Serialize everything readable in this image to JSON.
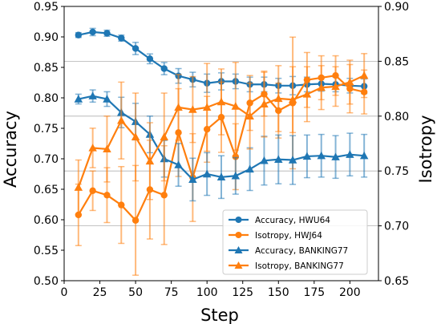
{
  "chart_data": {
    "type": "line",
    "xlabel": "Step",
    "ylabel_left": "Accuracy",
    "ylabel_right": "Isotropy",
    "xlim": [
      0,
      220
    ],
    "ylim_left": [
      0.5,
      0.95
    ],
    "ylim_right": [
      0.65,
      0.9
    ],
    "xticks": [
      "0",
      "25",
      "50",
      "75",
      "100",
      "125",
      "150",
      "175",
      "200"
    ],
    "yticks_left": [
      "0.50",
      "0.55",
      "0.60",
      "0.65",
      "0.70",
      "0.75",
      "0.80",
      "0.85",
      "0.90",
      "0.95"
    ],
    "yticks_right": [
      "0.65",
      "0.70",
      "0.75",
      "0.80",
      "0.85",
      "0.90"
    ],
    "grid": "horizontal-right-axis",
    "legend_position": "lower-right",
    "x": [
      10,
      20,
      30,
      40,
      50,
      60,
      70,
      80,
      90,
      100,
      110,
      120,
      130,
      140,
      150,
      160,
      170,
      180,
      190,
      200,
      210
    ],
    "series": [
      {
        "name": "Accuracy, HWU64",
        "axis": "left",
        "marker": "circle",
        "color": "#1f77b4",
        "values": [
          0.903,
          0.908,
          0.906,
          0.898,
          0.881,
          0.864,
          0.848,
          0.836,
          0.83,
          0.824,
          0.827,
          0.827,
          0.822,
          0.822,
          0.82,
          0.82,
          0.822,
          0.823,
          0.822,
          0.82,
          0.819
        ],
        "err": [
          0.004,
          0.006,
          0.005,
          0.005,
          0.01,
          0.008,
          0.01,
          0.012,
          0.012,
          0.015,
          0.014,
          0.012,
          0.012,
          0.012,
          0.012,
          0.015,
          0.012,
          0.012,
          0.012,
          0.012,
          0.012
        ]
      },
      {
        "name": "Isotropy,  HWJ64",
        "axis": "right",
        "marker": "circle",
        "color": "#ff7f0e",
        "values": [
          0.71,
          0.732,
          0.728,
          0.719,
          0.705,
          0.733,
          0.728,
          0.785,
          0.744,
          0.788,
          0.799,
          0.763,
          0.812,
          0.82,
          0.805,
          0.812,
          0.833,
          0.835,
          0.837,
          0.825,
          0.822
        ],
        "err": [
          0.028,
          0.018,
          0.025,
          0.035,
          0.05,
          0.045,
          0.045,
          0.04,
          0.04,
          0.03,
          0.032,
          0.03,
          0.025,
          0.02,
          0.025,
          0.06,
          0.025,
          0.02,
          0.018,
          0.022,
          0.02
        ]
      },
      {
        "name": "Accuracy, BANKING77",
        "axis": "left",
        "marker": "triangle",
        "color": "#1f77b4",
        "values": [
          0.798,
          0.803,
          0.798,
          0.776,
          0.761,
          0.74,
          0.7,
          0.69,
          0.666,
          0.675,
          0.67,
          0.672,
          0.683,
          0.697,
          0.699,
          0.698,
          0.704,
          0.705,
          0.703,
          0.707,
          0.705
        ],
        "err": [
          0.008,
          0.01,
          0.012,
          0.025,
          0.03,
          0.03,
          0.03,
          0.035,
          0.035,
          0.035,
          0.035,
          0.03,
          0.035,
          0.04,
          0.04,
          0.04,
          0.035,
          0.035,
          0.035,
          0.035,
          0.035
        ]
      },
      {
        "name": "Isotropy,  BANKING77",
        "axis": "right",
        "marker": "triangle",
        "color": "#ff7f0e",
        "values": [
          0.735,
          0.771,
          0.77,
          0.796,
          0.781,
          0.759,
          0.781,
          0.808,
          0.806,
          0.808,
          0.813,
          0.809,
          0.8,
          0.811,
          0.816,
          0.815,
          0.82,
          0.826,
          0.827,
          0.831,
          0.837
        ],
        "err": [
          0.025,
          0.018,
          0.03,
          0.035,
          0.04,
          0.035,
          0.04,
          0.03,
          0.03,
          0.04,
          0.03,
          0.04,
          0.03,
          0.03,
          0.03,
          0.03,
          0.025,
          0.02,
          0.018,
          0.02,
          0.02
        ]
      }
    ]
  }
}
